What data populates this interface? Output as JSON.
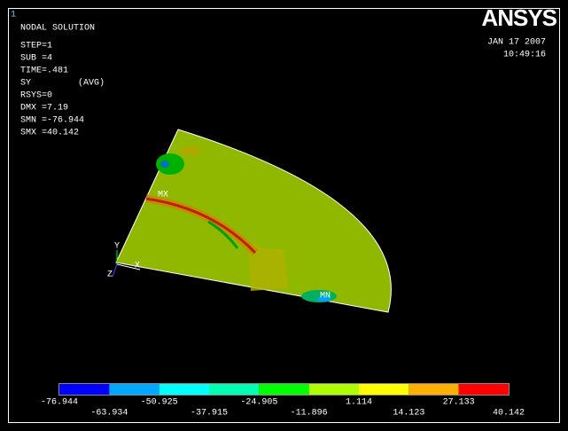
{
  "window_number": "1",
  "info": {
    "title": "NODAL SOLUTION",
    "lines": [
      "STEP=1",
      "SUB =4",
      "TIME=.481"
    ],
    "item": "SY",
    "item_avg": "(AVG)",
    "lines2": [
      "RSYS=0",
      "DMX =7.19",
      "SMN =-76.944",
      "SMX =40.142"
    ]
  },
  "logo": "ANSYS",
  "date": "JAN 17 2007",
  "time": "10:49:16",
  "markers": {
    "max": "MX",
    "min": "MN"
  },
  "triad": {
    "x": "X",
    "y": "Y",
    "z": "Z"
  },
  "legend": {
    "colors": [
      "#0000ff",
      "#00a8ff",
      "#00ffff",
      "#00ffb0",
      "#00ff00",
      "#b0ff00",
      "#ffff00",
      "#ffb000",
      "#ff0000"
    ],
    "labels": [
      -76.944,
      -63.934,
      -50.925,
      -37.915,
      -24.905,
      -11.896,
      1.114,
      14.123,
      27.133,
      40.142
    ]
  }
}
